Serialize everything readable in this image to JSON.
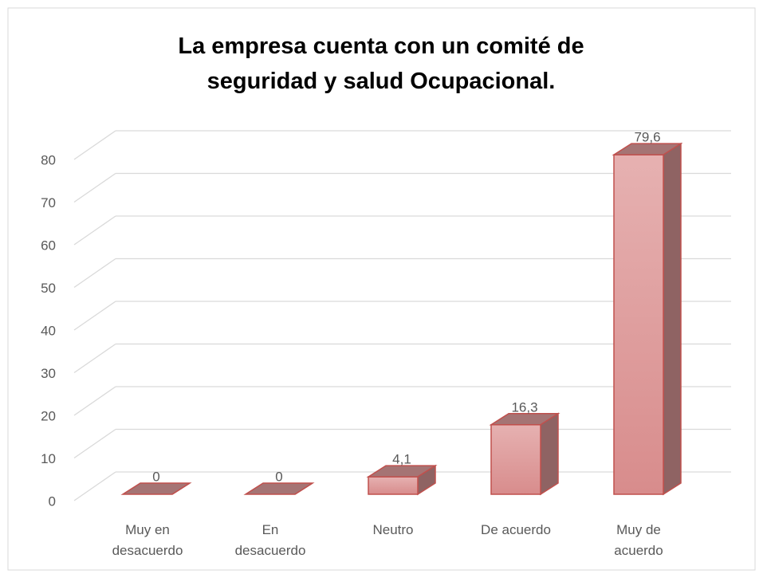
{
  "chart_data": {
    "type": "bar",
    "title": "La empresa cuenta con un comité de seguridad y salud Ocupacional.",
    "categories": [
      "Muy en desacuerdo",
      "En desacuerdo",
      "Neutro",
      "De acuerdo",
      "Muy de acuerdo"
    ],
    "values": [
      0,
      0,
      4.1,
      16.3,
      79.6
    ],
    "value_labels": [
      "0",
      "0",
      "4,1",
      "16,3",
      "79,6"
    ],
    "color": "#dc9c9c",
    "ylim": [
      0,
      80
    ],
    "yticks": [
      0,
      10,
      20,
      30,
      40,
      50,
      60,
      70,
      80
    ],
    "grid": true
  }
}
